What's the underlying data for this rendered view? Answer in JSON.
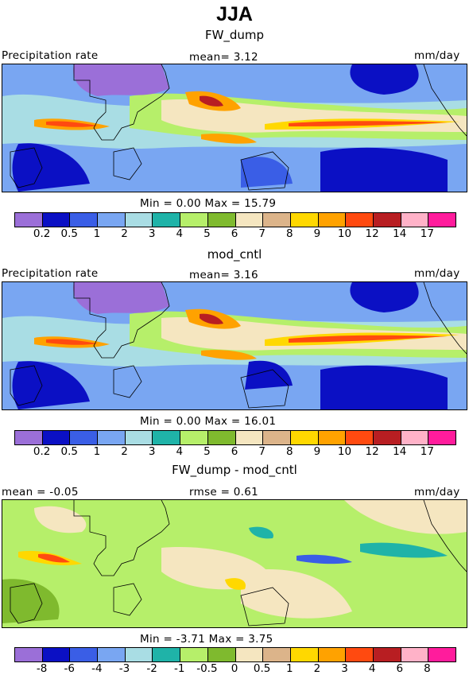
{
  "title": "JJA",
  "panels": [
    {
      "subtitle": "FW_dump",
      "left_label": "Precipitation rate",
      "center_label": "mean=     3.12",
      "right_label": "mm/day",
      "minmax": "Min =    0.00  Max =   15.79"
    },
    {
      "subtitle": "mod_cntl",
      "left_label": "Precipitation rate",
      "center_label": "mean=     3.16",
      "right_label": "mm/day",
      "minmax": "Min =    0.00  Max =   16.01"
    },
    {
      "subtitle": "FW_dump - mod_cntl",
      "left_label": "mean =   -0.05",
      "center_label": "rmse =    0.61",
      "right_label": "mm/day",
      "minmax": "Min =   -3.71  Max =    3.75"
    }
  ],
  "colors": {
    "precip": [
      "#9b6fd8",
      "#0b10c4",
      "#3a5ee6",
      "#79a6f2",
      "#a9dde4",
      "#1fb3a8",
      "#b6ef6a",
      "#7fba2e",
      "#f5e6c0",
      "#dcb48a",
      "#ffd800",
      "#ffa200",
      "#ff4a10",
      "#b81e22",
      "#ffb2c8",
      "#ff1c9c"
    ],
    "diff": [
      "#9b6fd8",
      "#0b10c4",
      "#3a5ee6",
      "#79a6f2",
      "#a9dde4",
      "#1fb3a8",
      "#b6ef6a",
      "#7fba2e",
      "#f5e6c0",
      "#dcb48a",
      "#ffd800",
      "#ffa200",
      "#ff4a10",
      "#b81e22",
      "#ffb2c8",
      "#ff1c9c"
    ]
  },
  "chart_data": [
    {
      "type": "heatmap",
      "title": "FW_dump",
      "variable": "Precipitation rate",
      "units": "mm/day",
      "mean": 3.12,
      "min": 0.0,
      "max": 15.79,
      "colorbar_levels": [
        "0.2",
        "0.5",
        "1",
        "2",
        "3",
        "4",
        "5",
        "6",
        "7",
        "8",
        "9",
        "10",
        "12",
        "14",
        "17"
      ]
    },
    {
      "type": "heatmap",
      "title": "mod_cntl",
      "variable": "Precipitation rate",
      "units": "mm/day",
      "mean": 3.16,
      "min": 0.0,
      "max": 16.01,
      "colorbar_levels": [
        "0.2",
        "0.5",
        "1",
        "2",
        "3",
        "4",
        "5",
        "6",
        "7",
        "8",
        "9",
        "10",
        "12",
        "14",
        "17"
      ]
    },
    {
      "type": "heatmap",
      "title": "FW_dump - mod_cntl",
      "units": "mm/day",
      "mean": -0.05,
      "rmse": 0.61,
      "min": -3.71,
      "max": 3.75,
      "colorbar_levels": [
        "-8",
        "-6",
        "-4",
        "-3",
        "-2",
        "-1",
        "-0.5",
        "0",
        "0.5",
        "1",
        "2",
        "3",
        "4",
        "6",
        "8"
      ]
    }
  ]
}
